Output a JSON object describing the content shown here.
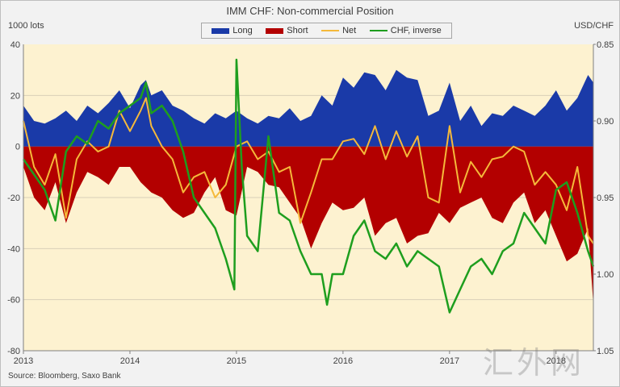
{
  "chart_data": {
    "type": "area",
    "title": "IMM CHF: Non-commercial  Position",
    "ylabel_left": "1000 lots",
    "ylabel_right": "USD/CHF",
    "source": "Source: Bloomberg, Saxo Bank",
    "ylim_left": [
      -80,
      40
    ],
    "ylim_right_inverted": [
      0.85,
      1.05
    ],
    "left_ticks": [
      "40",
      "20",
      "0",
      "-20",
      "-40",
      "-60",
      "-80"
    ],
    "right_ticks": [
      "0.85",
      "0.90",
      "0.95",
      "1.00",
      "1.05"
    ],
    "x_ticks": [
      "2013",
      "2014",
      "2015",
      "2016",
      "2017",
      "2018"
    ],
    "x_range": [
      2013.0,
      2018.35
    ],
    "series": [
      {
        "name": "Long",
        "color": "#1a3aa8",
        "x": [
          2013.0,
          2013.1,
          2013.2,
          2013.3,
          2013.4,
          2013.5,
          2013.6,
          2013.7,
          2013.8,
          2013.9,
          2014.0,
          2014.1,
          2014.15,
          2014.2,
          2014.3,
          2014.4,
          2014.5,
          2014.6,
          2014.7,
          2014.8,
          2014.9,
          2015.0,
          2015.1,
          2015.2,
          2015.3,
          2015.4,
          2015.5,
          2015.6,
          2015.7,
          2015.8,
          2015.9,
          2016.0,
          2016.1,
          2016.2,
          2016.3,
          2016.4,
          2016.5,
          2016.6,
          2016.7,
          2016.8,
          2016.9,
          2017.0,
          2017.1,
          2017.2,
          2017.3,
          2017.4,
          2017.5,
          2017.6,
          2017.7,
          2017.8,
          2017.9,
          2018.0,
          2018.1,
          2018.2,
          2018.3,
          2018.35
        ],
        "values": [
          16,
          10,
          9,
          11,
          14,
          10,
          16,
          13,
          17,
          22,
          15,
          24,
          26,
          20,
          22,
          16,
          14,
          11,
          9,
          13,
          11,
          14,
          11,
          9,
          12,
          11,
          15,
          10,
          12,
          20,
          16,
          27,
          23,
          29,
          28,
          22,
          30,
          27,
          26,
          12,
          14,
          25,
          10,
          16,
          8,
          13,
          12,
          16,
          14,
          12,
          16,
          22,
          14,
          19,
          28,
          25
        ]
      },
      {
        "name": "Short",
        "color": "#b30000",
        "x": [
          2013.0,
          2013.1,
          2013.2,
          2013.3,
          2013.4,
          2013.5,
          2013.6,
          2013.7,
          2013.8,
          2013.9,
          2014.0,
          2014.1,
          2014.2,
          2014.3,
          2014.4,
          2014.5,
          2014.6,
          2014.7,
          2014.8,
          2014.9,
          2015.0,
          2015.1,
          2015.2,
          2015.3,
          2015.4,
          2015.5,
          2015.6,
          2015.7,
          2015.8,
          2015.9,
          2016.0,
          2016.1,
          2016.2,
          2016.3,
          2016.4,
          2016.5,
          2016.6,
          2016.7,
          2016.8,
          2016.9,
          2017.0,
          2017.1,
          2017.2,
          2017.3,
          2017.4,
          2017.5,
          2017.6,
          2017.7,
          2017.8,
          2017.9,
          2018.0,
          2018.1,
          2018.2,
          2018.3,
          2018.35
        ],
        "values": [
          -8,
          -20,
          -25,
          -14,
          -30,
          -18,
          -10,
          -12,
          -15,
          -8,
          -8,
          -14,
          -18,
          -20,
          -25,
          -28,
          -26,
          -18,
          -12,
          -25,
          -27,
          -8,
          -10,
          -15,
          -16,
          -22,
          -28,
          -40,
          -30,
          -22,
          -25,
          -24,
          -20,
          -35,
          -30,
          -28,
          -38,
          -35,
          -34,
          -26,
          -30,
          -24,
          -22,
          -20,
          -28,
          -30,
          -22,
          -18,
          -30,
          -25,
          -35,
          -45,
          -42,
          -32,
          -62
        ]
      },
      {
        "name": "Net",
        "color": "#f5b93a",
        "x": [
          2013.0,
          2013.1,
          2013.2,
          2013.3,
          2013.4,
          2013.5,
          2013.6,
          2013.7,
          2013.8,
          2013.9,
          2014.0,
          2014.1,
          2014.15,
          2014.2,
          2014.3,
          2014.4,
          2014.5,
          2014.6,
          2014.7,
          2014.8,
          2014.9,
          2015.0,
          2015.1,
          2015.2,
          2015.3,
          2015.4,
          2015.5,
          2015.6,
          2015.7,
          2015.8,
          2015.9,
          2016.0,
          2016.1,
          2016.2,
          2016.3,
          2016.4,
          2016.5,
          2016.6,
          2016.7,
          2016.8,
          2016.9,
          2017.0,
          2017.1,
          2017.2,
          2017.3,
          2017.4,
          2017.5,
          2017.6,
          2017.7,
          2017.8,
          2017.9,
          2018.0,
          2018.1,
          2018.2,
          2018.3,
          2018.35
        ],
        "values": [
          10,
          -8,
          -15,
          -3,
          -28,
          -5,
          2,
          -2,
          0,
          14,
          6,
          14,
          19,
          8,
          0,
          -5,
          -18,
          -12,
          -10,
          -20,
          -15,
          0,
          2,
          -5,
          -2,
          -10,
          -8,
          -30,
          -18,
          -5,
          -5,
          2,
          3,
          -3,
          8,
          -5,
          6,
          -4,
          4,
          -20,
          -22,
          8,
          -18,
          -6,
          -12,
          -5,
          -4,
          0,
          -2,
          -15,
          -10,
          -15,
          -25,
          -8,
          -35,
          -38
        ]
      },
      {
        "name": "CHF, inverse",
        "color": "#1e9e1e",
        "axis": "right",
        "x": [
          2013.0,
          2013.1,
          2013.2,
          2013.3,
          2013.4,
          2013.5,
          2013.6,
          2013.7,
          2013.8,
          2013.9,
          2014.0,
          2014.1,
          2014.15,
          2014.2,
          2014.3,
          2014.4,
          2014.5,
          2014.6,
          2014.7,
          2014.8,
          2014.9,
          2014.98,
          2015.0,
          2015.05,
          2015.1,
          2015.2,
          2015.3,
          2015.4,
          2015.5,
          2015.6,
          2015.7,
          2015.8,
          2015.85,
          2015.9,
          2016.0,
          2016.1,
          2016.2,
          2016.3,
          2016.4,
          2016.5,
          2016.6,
          2016.7,
          2016.8,
          2016.9,
          2017.0,
          2017.1,
          2017.2,
          2017.3,
          2017.4,
          2017.5,
          2017.6,
          2017.7,
          2017.8,
          2017.9,
          2018.0,
          2018.1,
          2018.2,
          2018.3,
          2018.35
        ],
        "values": [
          0.925,
          0.935,
          0.945,
          0.965,
          0.92,
          0.91,
          0.915,
          0.9,
          0.905,
          0.895,
          0.89,
          0.885,
          0.875,
          0.895,
          0.89,
          0.9,
          0.92,
          0.95,
          0.96,
          0.97,
          0.99,
          1.01,
          0.86,
          0.93,
          0.975,
          0.985,
          0.91,
          0.96,
          0.965,
          0.985,
          1.0,
          1.0,
          1.02,
          1.0,
          1.0,
          0.975,
          0.965,
          0.985,
          0.99,
          0.98,
          0.995,
          0.985,
          0.99,
          0.995,
          1.025,
          1.01,
          0.995,
          0.99,
          1.0,
          0.985,
          0.98,
          0.96,
          0.97,
          0.98,
          0.945,
          0.94,
          0.96,
          0.985,
          0.995
        ]
      }
    ]
  },
  "watermark": "汇外网"
}
